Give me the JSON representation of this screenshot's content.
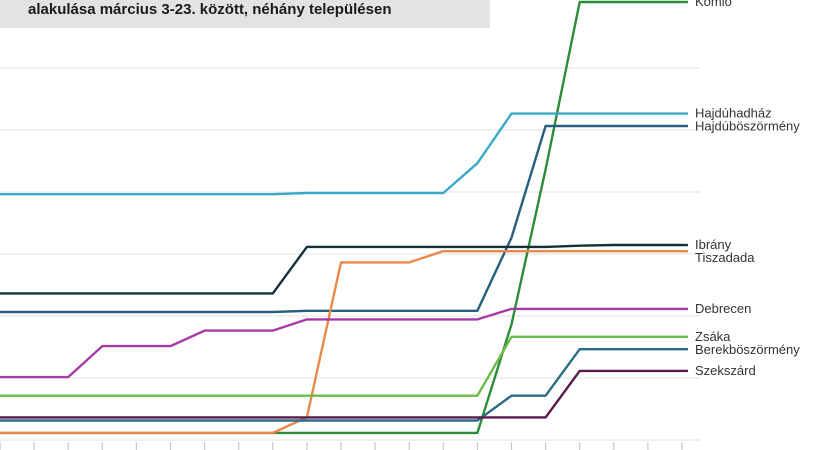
{
  "chart_data": {
    "type": "line",
    "title": "alakulása március 3-23. között, néhány településen",
    "xlabel": "",
    "ylabel": "",
    "x": [
      3,
      4,
      5,
      6,
      7,
      8,
      9,
      10,
      11,
      12,
      13,
      14,
      15,
      16,
      17,
      18,
      19,
      20,
      21,
      22,
      23
    ],
    "x_tick_labels": [
      "",
      "",
      "",
      "",
      "",
      "",
      "",
      "",
      "",
      "",
      "",
      "",
      "",
      "",
      "",
      "",
      "",
      "",
      "",
      "",
      ""
    ],
    "ylim": [
      0,
      7
    ],
    "grid": true,
    "legend": "direct labels at right end of lines",
    "series": [
      {
        "name": "Komló",
        "color": "#2e8b3a",
        "values": [
          0.05,
          0.05,
          0.05,
          0.05,
          0.05,
          0.05,
          0.05,
          0.05,
          0.05,
          0.05,
          0.05,
          0.05,
          0.05,
          0.05,
          0.05,
          1.8,
          4.3,
          7.0,
          7.0,
          7.0,
          7.0
        ]
      },
      {
        "name": "Hajdúhadház",
        "color": "#3aa8c8",
        "values": [
          3.9,
          3.9,
          3.9,
          3.9,
          3.9,
          3.9,
          3.9,
          3.9,
          3.9,
          3.92,
          3.92,
          3.92,
          3.92,
          3.92,
          4.4,
          5.2,
          5.2,
          5.2,
          5.2,
          5.2,
          5.2
        ]
      },
      {
        "name": "Hajdúböszörmény",
        "color": "#275f7f",
        "values": [
          2.0,
          2.0,
          2.0,
          2.0,
          2.0,
          2.0,
          2.0,
          2.0,
          2.0,
          2.02,
          2.02,
          2.02,
          2.02,
          2.02,
          2.02,
          3.2,
          5.0,
          5.0,
          5.0,
          5.0,
          5.0
        ]
      },
      {
        "name": "Ibrány",
        "color": "#14303a",
        "values": [
          2.3,
          2.3,
          2.3,
          2.3,
          2.3,
          2.3,
          2.3,
          2.3,
          2.3,
          3.05,
          3.05,
          3.05,
          3.05,
          3.05,
          3.05,
          3.05,
          3.05,
          3.07,
          3.08,
          3.08,
          3.08
        ]
      },
      {
        "name": "Tiszadada",
        "color": "#e8894a",
        "values": [
          0.05,
          0.05,
          0.05,
          0.05,
          0.05,
          0.05,
          0.05,
          0.05,
          0.05,
          0.3,
          2.8,
          2.8,
          2.8,
          2.98,
          2.98,
          2.98,
          2.98,
          2.98,
          2.98,
          2.98,
          2.98
        ]
      },
      {
        "name": "Debrecen",
        "color": "#a63aa6",
        "values": [
          0.95,
          0.95,
          0.95,
          1.45,
          1.45,
          1.45,
          1.7,
          1.7,
          1.7,
          1.88,
          1.88,
          1.88,
          1.88,
          1.88,
          1.88,
          2.05,
          2.05,
          2.05,
          2.05,
          2.05,
          2.05
        ]
      },
      {
        "name": "Zsáka",
        "color": "#6dbb4a",
        "values": [
          0.65,
          0.65,
          0.65,
          0.65,
          0.65,
          0.65,
          0.65,
          0.65,
          0.65,
          0.65,
          0.65,
          0.65,
          0.65,
          0.65,
          0.65,
          1.6,
          1.6,
          1.6,
          1.6,
          1.6,
          1.6
        ]
      },
      {
        "name": "Berekböszörmény",
        "color": "#2a6e86",
        "values": [
          0.25,
          0.25,
          0.25,
          0.25,
          0.25,
          0.25,
          0.25,
          0.25,
          0.25,
          0.25,
          0.25,
          0.25,
          0.25,
          0.25,
          0.25,
          0.65,
          0.65,
          1.4,
          1.4,
          1.4,
          1.4
        ]
      },
      {
        "name": "Szekszárd",
        "color": "#5a1a4a",
        "values": [
          0.3,
          0.3,
          0.3,
          0.3,
          0.3,
          0.3,
          0.3,
          0.3,
          0.3,
          0.3,
          0.3,
          0.3,
          0.3,
          0.3,
          0.3,
          0.3,
          0.3,
          1.05,
          1.05,
          1.05,
          1.05
        ]
      }
    ]
  }
}
